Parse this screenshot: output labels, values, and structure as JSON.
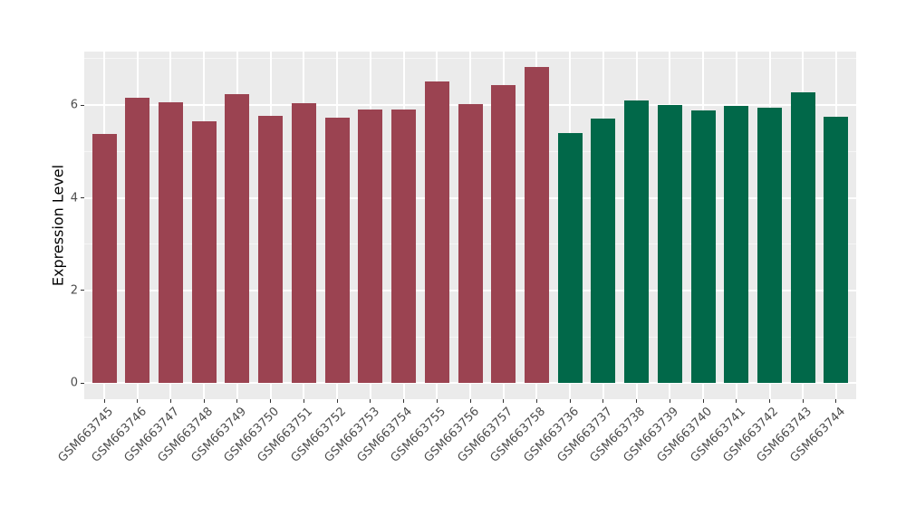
{
  "chart_data": {
    "type": "bar",
    "title": "",
    "xlabel": "",
    "ylabel": "Expression Level",
    "categories": [
      "GSM663745",
      "GSM663746",
      "GSM663747",
      "GSM663748",
      "GSM663749",
      "GSM663750",
      "GSM663751",
      "GSM663752",
      "GSM663753",
      "GSM663754",
      "GSM663755",
      "GSM663756",
      "GSM663757",
      "GSM663758",
      "GSM663736",
      "GSM663737",
      "GSM663738",
      "GSM663739",
      "GSM663740",
      "GSM663741",
      "GSM663742",
      "GSM663743",
      "GSM663744"
    ],
    "values": [
      5.38,
      6.16,
      6.07,
      5.66,
      6.23,
      5.77,
      6.04,
      5.72,
      5.91,
      5.91,
      6.51,
      6.02,
      6.43,
      6.82,
      5.4,
      5.7,
      6.09,
      6.0,
      5.89,
      5.99,
      5.94,
      6.27,
      5.74
    ],
    "groups": [
      "red",
      "red",
      "red",
      "red",
      "red",
      "red",
      "red",
      "red",
      "red",
      "red",
      "red",
      "red",
      "red",
      "red",
      "green",
      "green",
      "green",
      "green",
      "green",
      "green",
      "green",
      "green",
      "green"
    ],
    "group_colors": {
      "red": "#9B4351",
      "green": "#016849"
    },
    "ytick_labels": [
      "0",
      "2",
      "4",
      "6"
    ],
    "ytick_values": [
      0,
      2,
      4,
      6
    ],
    "yminor_values": [
      1,
      3,
      5,
      7
    ],
    "ylim": [
      -0.35,
      7.15
    ],
    "grid": true,
    "legend": "none",
    "panel_background": "#EBEBEB",
    "gridline_color": "#FFFFFF",
    "tick_color": "#333333",
    "tick_label_color": "#4D4D4D"
  }
}
